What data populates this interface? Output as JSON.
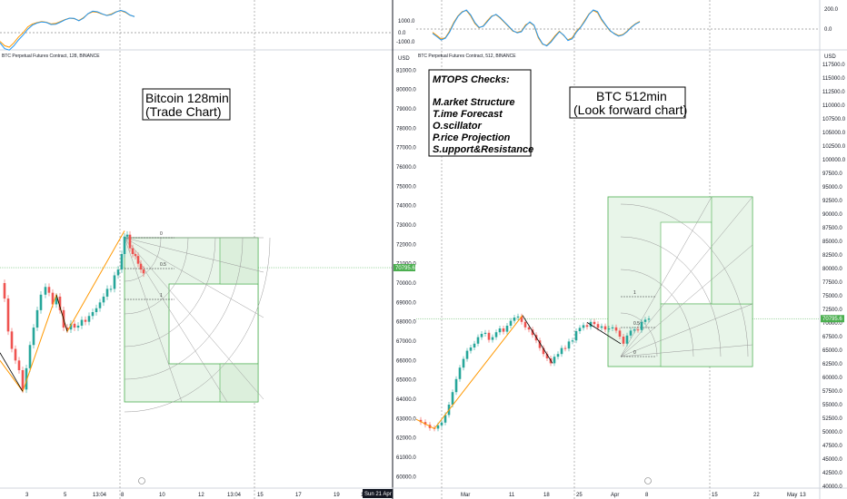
{
  "chart_data": [
    {
      "type": "line",
      "panel": "left-oscillator",
      "x": [
        0,
        5,
        10,
        15,
        20,
        25,
        30,
        35,
        40,
        45,
        50,
        55,
        60,
        65,
        70,
        75,
        80,
        85,
        90,
        95,
        100,
        105,
        110,
        115,
        120,
        125,
        130,
        135,
        140,
        145
      ],
      "series": [
        {
          "color": "#ff9800",
          "values": [
            -300,
            -450,
            -500,
            -350,
            -150,
            0,
            200,
            300,
            350,
            380,
            360,
            300,
            320,
            380,
            450,
            500,
            480,
            420,
            520,
            650,
            720,
            700,
            640,
            600,
            640,
            720,
            760,
            700,
            600,
            560
          ]
        },
        {
          "color": "#2196f3",
          "values": [
            -350,
            -550,
            -600,
            -450,
            -250,
            -80,
            120,
            260,
            330,
            370,
            350,
            280,
            290,
            360,
            440,
            500,
            490,
            410,
            500,
            660,
            740,
            720,
            650,
            590,
            620,
            710,
            770,
            720,
            610,
            550
          ]
        }
      ]
    },
    {
      "type": "line",
      "panel": "right-oscillator",
      "x": [
        0,
        5,
        10,
        15,
        20,
        25,
        30,
        35,
        40,
        45,
        50,
        55,
        60,
        65,
        70,
        75,
        80,
        85,
        90,
        95,
        100,
        105,
        110,
        115,
        120,
        125,
        130,
        135,
        140,
        145,
        150,
        155,
        160,
        165,
        170,
        175,
        180,
        185,
        190,
        195,
        200,
        205,
        210,
        215,
        220,
        225,
        230,
        235,
        240,
        245
      ],
      "series": [
        {
          "color": "#ff9800",
          "values": [
            -300,
            -600,
            -900,
            -800,
            -200,
            600,
            1200,
            1600,
            1700,
            1200,
            500,
            100,
            300,
            800,
            1200,
            1300,
            1000,
            600,
            200,
            -200,
            -300,
            -200,
            400,
            600,
            300,
            -800,
            -1400,
            -1500,
            -1100,
            -600,
            -200,
            -600,
            -1000,
            -800,
            -200,
            200,
            800,
            1400,
            1700,
            1500,
            800,
            300,
            -200,
            -400,
            -600,
            -500,
            -200,
            200,
            500,
            700
          ]
        },
        {
          "color": "#2196f3",
          "values": [
            -400,
            -700,
            -1000,
            -850,
            -300,
            500,
            1150,
            1550,
            1750,
            1300,
            600,
            150,
            250,
            700,
            1150,
            1350,
            1050,
            650,
            250,
            -150,
            -350,
            -250,
            300,
            650,
            350,
            -700,
            -1350,
            -1550,
            -1200,
            -700,
            -250,
            -550,
            -1050,
            -900,
            -300,
            150,
            700,
            1350,
            1750,
            1600,
            900,
            350,
            -150,
            -450,
            -650,
            -550,
            -250,
            150,
            450,
            650
          ]
        }
      ]
    },
    {
      "type": "candlestick",
      "panel": "left-price",
      "title": "BTC Perpetual Futures Contract, 128, BINANCE",
      "ylim": [
        59500,
        82000
      ],
      "yticks": [
        60000,
        61000,
        62000,
        63000,
        64000,
        65000,
        66000,
        67000,
        68000,
        69000,
        70000,
        71000,
        72000,
        73000,
        74000,
        75000,
        76000,
        77000,
        78000,
        79000,
        80000,
        81000
      ],
      "last_price": "70795.6",
      "xticks": [
        "3",
        "5",
        "13:04",
        "8",
        "10",
        "12",
        "13:04",
        "15",
        "17",
        "19",
        "13:"
      ],
      "crosshair_label": "Sun 21 Apr '2",
      "price_path": [
        [
          0,
          70000
        ],
        [
          5,
          69200
        ],
        [
          9,
          67500
        ],
        [
          13,
          66600
        ],
        [
          17,
          66000
        ],
        [
          21,
          65500
        ],
        [
          25,
          64500
        ],
        [
          29,
          65600
        ],
        [
          33,
          66800
        ],
        [
          37,
          67700
        ],
        [
          41,
          68600
        ],
        [
          45,
          69400
        ],
        [
          50,
          69800
        ],
        [
          54,
          69500
        ],
        [
          58,
          68900
        ],
        [
          62,
          69300
        ],
        [
          66,
          68600
        ],
        [
          70,
          67700
        ],
        [
          74,
          67600
        ],
        [
          78,
          67900
        ],
        [
          82,
          67700
        ],
        [
          86,
          67800
        ],
        [
          90,
          68100
        ],
        [
          94,
          68000
        ],
        [
          98,
          68300
        ],
        [
          102,
          68500
        ],
        [
          106,
          68700
        ],
        [
          110,
          69000
        ],
        [
          114,
          69300
        ],
        [
          118,
          69700
        ],
        [
          122,
          69700
        ],
        [
          126,
          70400
        ],
        [
          130,
          70700
        ],
        [
          134,
          71500
        ],
        [
          137,
          72400
        ],
        [
          140,
          72500
        ],
        [
          143,
          71800
        ],
        [
          146,
          71500
        ],
        [
          149,
          71400
        ],
        [
          152,
          71000
        ],
        [
          155,
          70700
        ],
        [
          158,
          70500
        ]
      ]
    },
    {
      "type": "candlestick",
      "panel": "right-price",
      "title": "BTC Perpetual Futures Contract, 512, BINANCE",
      "ylim": [
        40000,
        120000
      ],
      "yticks": [
        40000,
        42500,
        45000,
        47500,
        50000,
        52500,
        55000,
        57500,
        60000,
        62500,
        65000,
        67500,
        70000,
        72500,
        75000,
        77500,
        80000,
        82500,
        85000,
        87500,
        90000,
        92500,
        95000,
        97500,
        100000,
        102500,
        105000,
        107500,
        110000,
        112500,
        115000,
        117500
      ],
      "last_price": "70795.6",
      "xticks": [
        "Mar",
        "11",
        "18",
        "25",
        "Apr",
        "8",
        "15",
        "22",
        "May",
        "13",
        "20"
      ],
      "price_path": [
        [
          458,
          52200
        ],
        [
          463,
          51800
        ],
        [
          468,
          51300
        ],
        [
          473,
          50700
        ],
        [
          478,
          50600
        ],
        [
          482,
          51200
        ],
        [
          486,
          51700
        ],
        [
          490,
          53100
        ],
        [
          494,
          55000
        ],
        [
          498,
          57300
        ],
        [
          502,
          59700
        ],
        [
          506,
          61800
        ],
        [
          510,
          63400
        ],
        [
          514,
          64900
        ],
        [
          518,
          65500
        ],
        [
          522,
          66200
        ],
        [
          526,
          67400
        ],
        [
          530,
          68000
        ],
        [
          534,
          68200
        ],
        [
          538,
          66900
        ],
        [
          542,
          67400
        ],
        [
          546,
          68300
        ],
        [
          550,
          69000
        ],
        [
          554,
          68400
        ],
        [
          558,
          69500
        ],
        [
          562,
          70400
        ],
        [
          566,
          71000
        ],
        [
          570,
          71200
        ],
        [
          574,
          70200
        ],
        [
          578,
          69200
        ],
        [
          582,
          68800
        ],
        [
          586,
          67800
        ],
        [
          590,
          66800
        ],
        [
          594,
          65400
        ],
        [
          598,
          64300
        ],
        [
          602,
          63500
        ],
        [
          606,
          62600
        ],
        [
          610,
          63800
        ],
        [
          614,
          64300
        ],
        [
          618,
          65400
        ],
        [
          622,
          65300
        ],
        [
          626,
          66600
        ],
        [
          630,
          66800
        ],
        [
          634,
          68500
        ],
        [
          638,
          69100
        ],
        [
          642,
          69600
        ],
        [
          646,
          69300
        ],
        [
          650,
          70200
        ],
        [
          654,
          69800
        ],
        [
          658,
          69100
        ],
        [
          662,
          69400
        ],
        [
          666,
          68800
        ],
        [
          670,
          69000
        ],
        [
          674,
          69200
        ],
        [
          678,
          68600
        ],
        [
          682,
          67500
        ],
        [
          686,
          66200
        ],
        [
          690,
          67700
        ],
        [
          694,
          68600
        ],
        [
          698,
          68800
        ],
        [
          702,
          68700
        ],
        [
          706,
          70200
        ],
        [
          710,
          70600
        ],
        [
          714,
          70800
        ]
      ]
    }
  ],
  "boxes": {
    "left_title": [
      "Bitcoin 128min",
      "(Trade Chart)"
    ],
    "mtops_title": "MTOPS Checks:",
    "mtops_items": [
      "M.arket Structure",
      "T.ime Forecast",
      "O.scillator",
      "P.rice Projection",
      "S.upport&Resistance"
    ],
    "right_title": [
      "BTC 512min",
      "(Look forward chart)"
    ]
  },
  "fib_labels": {
    "left": [
      "0",
      "0.5",
      "1"
    ],
    "right": [
      "1",
      "0.5",
      "0"
    ]
  },
  "osc_axis_right": [
    "200.0",
    "0.0"
  ],
  "osc_axis_mid": [
    "1000.0",
    "0.0",
    "-1000.0"
  ],
  "usd_label": "USD",
  "colors": {
    "up": "#26a69a",
    "down": "#ef5350",
    "orange": "#ff9800",
    "blue": "#2196f3",
    "fib": "#4caf50",
    "price_tag": "#4caf50"
  }
}
